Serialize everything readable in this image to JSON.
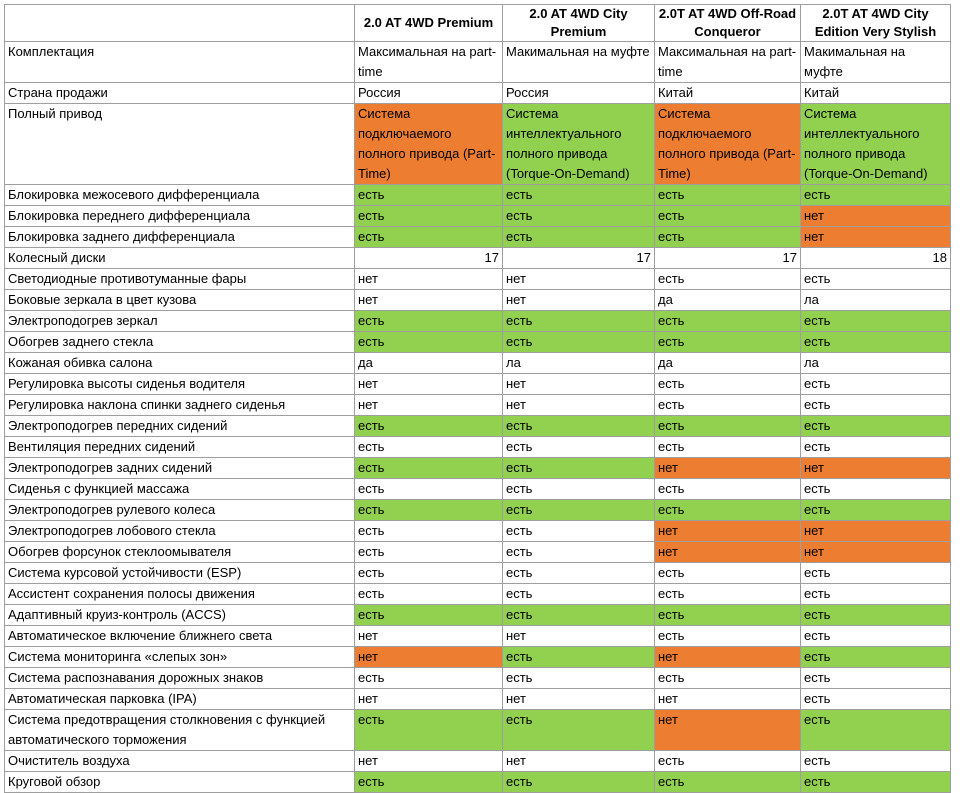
{
  "colors": {
    "green": "#92d050",
    "orange": "#ed7d31",
    "white": "#ffffff"
  },
  "headers": [
    "",
    "2.0 AT 4WD Premium",
    "2.0 AT 4WD City Premium",
    "2.0T AT 4WD Off-Road Conqueror",
    "2.0T AT 4WD City Edition Very Stylish"
  ],
  "rows": [
    {
      "label": "Комплектация",
      "cells": [
        {
          "text": "Максимальная на part-time",
          "color": "white"
        },
        {
          "text": "Макимальная на муфте",
          "color": "white"
        },
        {
          "text": "Максимальная на part-time",
          "color": "white"
        },
        {
          "text": "Макимальная на муфте",
          "color": "white"
        }
      ]
    },
    {
      "label": "Страна продажи",
      "cells": [
        {
          "text": "Россия",
          "color": "white"
        },
        {
          "text": "Россия",
          "color": "white"
        },
        {
          "text": "Китай",
          "color": "white"
        },
        {
          "text": "Китай",
          "color": "white"
        }
      ]
    },
    {
      "label": "Полный привод",
      "cells": [
        {
          "text": "Система подключаемого полного привода (Part-Time)",
          "color": "orange"
        },
        {
          "text": "Система интеллектуального полного привода (Torque-On-Demand)",
          "color": "green"
        },
        {
          "text": "Система подключаемого полного привода (Part-Time)",
          "color": "orange"
        },
        {
          "text": "Система интеллектуального полного привода (Torque-On-Demand)",
          "color": "green"
        }
      ]
    },
    {
      "label": "Блокировка межосевого дифференциала",
      "cells": [
        {
          "text": "есть",
          "color": "green"
        },
        {
          "text": "есть",
          "color": "green"
        },
        {
          "text": "есть",
          "color": "green"
        },
        {
          "text": "есть",
          "color": "green"
        }
      ]
    },
    {
      "label": "Блокировка переднего дифференциала",
      "cells": [
        {
          "text": "есть",
          "color": "green"
        },
        {
          "text": "есть",
          "color": "green"
        },
        {
          "text": "есть",
          "color": "green"
        },
        {
          "text": "нет",
          "color": "orange"
        }
      ]
    },
    {
      "label": "Блокировка заднего дифференциала",
      "cells": [
        {
          "text": "есть",
          "color": "green"
        },
        {
          "text": "есть",
          "color": "green"
        },
        {
          "text": "есть",
          "color": "green"
        },
        {
          "text": "нет",
          "color": "orange"
        }
      ]
    },
    {
      "label": "Колесный диски",
      "cells": [
        {
          "text": "17",
          "color": "white",
          "num": true
        },
        {
          "text": "17",
          "color": "white",
          "num": true
        },
        {
          "text": "17",
          "color": "white",
          "num": true
        },
        {
          "text": "18",
          "color": "white",
          "num": true
        }
      ]
    },
    {
      "label": "Светодиодные противотуманные фары",
      "cells": [
        {
          "text": "нет",
          "color": "white"
        },
        {
          "text": "нет",
          "color": "white"
        },
        {
          "text": "есть",
          "color": "white"
        },
        {
          "text": "есть",
          "color": "white"
        }
      ]
    },
    {
      "label": "Боковые зеркала в цвет кузова",
      "cells": [
        {
          "text": "нет",
          "color": "white"
        },
        {
          "text": "нет",
          "color": "white"
        },
        {
          "text": "да",
          "color": "white"
        },
        {
          "text": "ла",
          "color": "white"
        }
      ]
    },
    {
      "label": "Электроподогрев зеркал",
      "cells": [
        {
          "text": "есть",
          "color": "green"
        },
        {
          "text": "есть",
          "color": "green"
        },
        {
          "text": "есть",
          "color": "green"
        },
        {
          "text": "есть",
          "color": "green"
        }
      ]
    },
    {
      "label": "Обогрев заднего стекла",
      "cells": [
        {
          "text": "есть",
          "color": "green"
        },
        {
          "text": "есть",
          "color": "green"
        },
        {
          "text": "есть",
          "color": "green"
        },
        {
          "text": "есть",
          "color": "green"
        }
      ]
    },
    {
      "label": "Кожаная обивка салона",
      "cells": [
        {
          "text": "да",
          "color": "white"
        },
        {
          "text": "ла",
          "color": "white"
        },
        {
          "text": "да",
          "color": "white"
        },
        {
          "text": "ла",
          "color": "white"
        }
      ]
    },
    {
      "label": "Регулировка высоты сиденья водителя",
      "cells": [
        {
          "text": "нет",
          "color": "white"
        },
        {
          "text": "нет",
          "color": "white"
        },
        {
          "text": "есть",
          "color": "white"
        },
        {
          "text": "есть",
          "color": "white"
        }
      ]
    },
    {
      "label": "Регулировка наклона спинки заднего сиденья",
      "cells": [
        {
          "text": "нет",
          "color": "white"
        },
        {
          "text": "нет",
          "color": "white"
        },
        {
          "text": "есть",
          "color": "white"
        },
        {
          "text": "есть",
          "color": "white"
        }
      ]
    },
    {
      "label": "Электроподогрев передних сидений",
      "cells": [
        {
          "text": "есть",
          "color": "green"
        },
        {
          "text": "есть",
          "color": "green"
        },
        {
          "text": "есть",
          "color": "green"
        },
        {
          "text": "есть",
          "color": "green"
        }
      ]
    },
    {
      "label": "Вентиляция передних сидений",
      "cells": [
        {
          "text": "есть",
          "color": "white"
        },
        {
          "text": "есть",
          "color": "white"
        },
        {
          "text": "есть",
          "color": "white"
        },
        {
          "text": "есть",
          "color": "white"
        }
      ]
    },
    {
      "label": "Электроподогрев задних сидений",
      "cells": [
        {
          "text": "есть",
          "color": "green"
        },
        {
          "text": "есть",
          "color": "green"
        },
        {
          "text": "нет",
          "color": "orange"
        },
        {
          "text": "нет",
          "color": "orange"
        }
      ]
    },
    {
      "label": "Сиденья с функцией массажа",
      "cells": [
        {
          "text": "есть",
          "color": "white"
        },
        {
          "text": "есть",
          "color": "white"
        },
        {
          "text": "есть",
          "color": "white"
        },
        {
          "text": "есть",
          "color": "white"
        }
      ]
    },
    {
      "label": "Электроподогрев рулевого колеса",
      "cells": [
        {
          "text": "есть",
          "color": "green"
        },
        {
          "text": "есть",
          "color": "green"
        },
        {
          "text": "есть",
          "color": "green"
        },
        {
          "text": "есть",
          "color": "green"
        }
      ]
    },
    {
      "label": "Электроподогрев лобового стекла",
      "cells": [
        {
          "text": "есть",
          "color": "white"
        },
        {
          "text": "есть",
          "color": "white"
        },
        {
          "text": "нет",
          "color": "orange"
        },
        {
          "text": "нет",
          "color": "orange"
        }
      ]
    },
    {
      "label": "Обогрев форсунок стеклоомывателя",
      "cells": [
        {
          "text": "есть",
          "color": "white"
        },
        {
          "text": "есть",
          "color": "white"
        },
        {
          "text": "нет",
          "color": "orange"
        },
        {
          "text": "нет",
          "color": "orange"
        }
      ]
    },
    {
      "label": "Система курсовой устойчивости (ESP)",
      "cells": [
        {
          "text": "есть",
          "color": "white"
        },
        {
          "text": "есть",
          "color": "white"
        },
        {
          "text": "есть",
          "color": "white"
        },
        {
          "text": "есть",
          "color": "white"
        }
      ]
    },
    {
      "label": "Ассистент сохранения полосы движения",
      "cells": [
        {
          "text": "есть",
          "color": "white"
        },
        {
          "text": "есть",
          "color": "white"
        },
        {
          "text": "есть",
          "color": "white"
        },
        {
          "text": "есть",
          "color": "white"
        }
      ]
    },
    {
      "label": "Адаптивный круиз-контроль (ACCS)",
      "cells": [
        {
          "text": "есть",
          "color": "green"
        },
        {
          "text": "есть",
          "color": "green"
        },
        {
          "text": "есть",
          "color": "green"
        },
        {
          "text": "есть",
          "color": "green"
        }
      ]
    },
    {
      "label": "Автоматическое включение ближнего света",
      "cells": [
        {
          "text": "нет",
          "color": "white"
        },
        {
          "text": "нет",
          "color": "white"
        },
        {
          "text": "есть",
          "color": "white"
        },
        {
          "text": "есть",
          "color": "white"
        }
      ]
    },
    {
      "label": "Система мониторинга «слепых зон»",
      "cells": [
        {
          "text": "нет",
          "color": "orange"
        },
        {
          "text": "есть",
          "color": "green"
        },
        {
          "text": "нет",
          "color": "orange"
        },
        {
          "text": "есть",
          "color": "green"
        }
      ]
    },
    {
      "label": "Система распознавания дорожных знаков",
      "cells": [
        {
          "text": "есть",
          "color": "white"
        },
        {
          "text": "есть",
          "color": "white"
        },
        {
          "text": "есть",
          "color": "white"
        },
        {
          "text": "есть",
          "color": "white"
        }
      ]
    },
    {
      "label": "Автоматическая парковка (IPA)",
      "cells": [
        {
          "text": "нет",
          "color": "white"
        },
        {
          "text": "нет",
          "color": "white"
        },
        {
          "text": "нет",
          "color": "white"
        },
        {
          "text": "есть",
          "color": "white"
        }
      ]
    },
    {
      "label": "Система предотвращения столкновения с функцией автоматического торможения",
      "cells": [
        {
          "text": "есть",
          "color": "green"
        },
        {
          "text": "есть",
          "color": "green"
        },
        {
          "text": "нет",
          "color": "orange"
        },
        {
          "text": "есть",
          "color": "green"
        }
      ]
    },
    {
      "label": "Очиститель воздуха",
      "cells": [
        {
          "text": "нет",
          "color": "white"
        },
        {
          "text": "нет",
          "color": "white"
        },
        {
          "text": "есть",
          "color": "white"
        },
        {
          "text": "есть",
          "color": "white"
        }
      ]
    },
    {
      "label": "Круговой обзор",
      "cells": [
        {
          "text": "есть",
          "color": "green"
        },
        {
          "text": "есть",
          "color": "green"
        },
        {
          "text": "есть",
          "color": "green"
        },
        {
          "text": "есть",
          "color": "green"
        }
      ]
    }
  ]
}
